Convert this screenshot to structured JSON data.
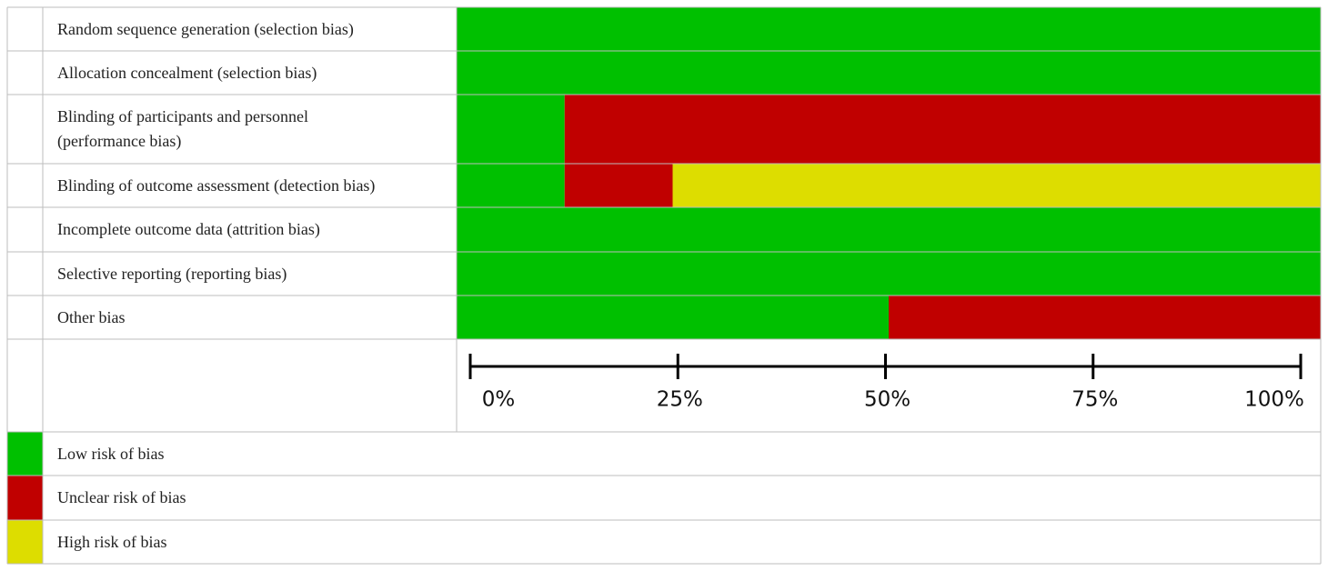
{
  "chart_data": {
    "type": "stacked-bar",
    "categories": [
      "Random sequence generation (selection bias)",
      "Allocation concealment (selection bias)",
      "Blinding of participants and personnel\n(performance bias)",
      "Blinding of outcome assessment (detection bias)",
      "Incomplete outcome data (attrition bias)",
      "Selective reporting (reporting bias)",
      "Other bias"
    ],
    "series": [
      {
        "name": "Low risk of bias",
        "color": "#00c000",
        "values": [
          100,
          100,
          12.5,
          12.5,
          100,
          100,
          50
        ]
      },
      {
        "name": "Unclear risk of bias",
        "color": "#c00000",
        "values": [
          0,
          0,
          87.5,
          12.5,
          0,
          0,
          50
        ]
      },
      {
        "name": "High risk of bias",
        "color": "#dddd00",
        "values": [
          0,
          0,
          0,
          75,
          0,
          0,
          0
        ]
      }
    ],
    "xlim": [
      0,
      100
    ],
    "xticks": [
      {
        "value": 0,
        "label": "0%"
      },
      {
        "value": 25,
        "label": "25%"
      },
      {
        "value": 50,
        "label": "50%"
      },
      {
        "value": 75,
        "label": "75%"
      },
      {
        "value": 100,
        "label": "100%"
      }
    ]
  }
}
